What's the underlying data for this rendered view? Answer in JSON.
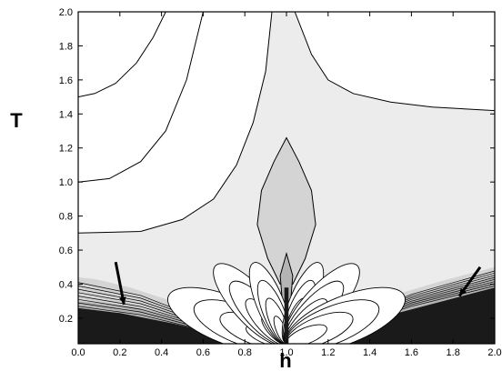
{
  "chart_data": {
    "type": "contour",
    "title": "",
    "xlabel": "h",
    "ylabel": "T",
    "xlim": [
      0.0,
      2.0
    ],
    "ylim": [
      0.05,
      2.0
    ],
    "x_ticks": [
      "0.0",
      "0.2",
      "0.4",
      "0.6",
      "0.8",
      "1.0",
      "1.2",
      "1.4",
      "1.6",
      "1.8",
      "2.0"
    ],
    "y_ticks": [
      "0.2",
      "0.4",
      "0.6",
      "0.8",
      "1.0",
      "1.2",
      "1.4",
      "1.6",
      "1.8",
      "2.0"
    ],
    "fill_levels": [
      "#ffffff",
      "#ececec",
      "#d4d4d4",
      "#b4b4b4",
      "#1a1a1a"
    ],
    "contours": [
      {
        "name": "upper-left-outer",
        "points": [
          [
            0.0,
            1.5
          ],
          [
            0.08,
            1.52
          ],
          [
            0.18,
            1.58
          ],
          [
            0.28,
            1.7
          ],
          [
            0.36,
            1.85
          ],
          [
            0.42,
            2.0
          ]
        ]
      },
      {
        "name": "upper-left-inner",
        "points": [
          [
            0.0,
            1.0
          ],
          [
            0.15,
            1.02
          ],
          [
            0.3,
            1.12
          ],
          [
            0.42,
            1.3
          ],
          [
            0.52,
            1.6
          ],
          [
            0.6,
            2.0
          ]
        ]
      },
      {
        "name": "left-lower",
        "points": [
          [
            0.0,
            0.7
          ],
          [
            0.3,
            0.71
          ],
          [
            0.5,
            0.78
          ],
          [
            0.65,
            0.9
          ],
          [
            0.76,
            1.1
          ],
          [
            0.84,
            1.35
          ],
          [
            0.9,
            1.65
          ],
          [
            0.93,
            2.0
          ]
        ]
      },
      {
        "name": "right-arch",
        "points": [
          [
            1.04,
            2.0
          ],
          [
            1.12,
            1.75
          ],
          [
            1.2,
            1.6
          ],
          [
            1.32,
            1.52
          ],
          [
            1.5,
            1.47
          ],
          [
            1.7,
            1.44
          ],
          [
            2.0,
            1.42
          ]
        ]
      },
      {
        "name": "spike-outer",
        "points": [
          [
            0.97,
            0.4
          ],
          [
            0.91,
            0.55
          ],
          [
            0.86,
            0.75
          ],
          [
            0.88,
            0.95
          ],
          [
            0.94,
            1.12
          ],
          [
            1.0,
            1.26
          ],
          [
            1.06,
            1.12
          ],
          [
            1.12,
            0.95
          ],
          [
            1.14,
            0.75
          ],
          [
            1.09,
            0.55
          ],
          [
            1.03,
            0.4
          ]
        ]
      },
      {
        "name": "spike-inner",
        "points": [
          [
            0.98,
            0.3
          ],
          [
            0.97,
            0.45
          ],
          [
            1.0,
            0.58
          ],
          [
            1.03,
            0.45
          ],
          [
            1.02,
            0.3
          ]
        ]
      }
    ],
    "arrows": [
      {
        "from": [
          0.18,
          0.53
        ],
        "to": [
          0.22,
          0.28
        ]
      },
      {
        "from": [
          1.93,
          0.5
        ],
        "to": [
          1.83,
          0.33
        ]
      }
    ],
    "grid": false
  }
}
